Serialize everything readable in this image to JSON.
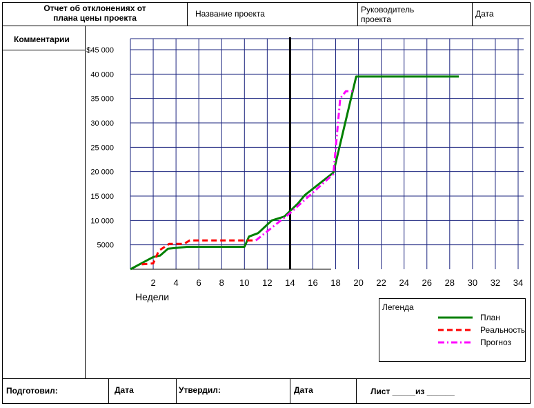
{
  "header": {
    "report_title_line1": "Отчет об отклонениях от",
    "report_title_line2": "плана цены проекта",
    "project_name": "Название проекта",
    "manager_line1": "Руководитель",
    "manager_line2": "проекта",
    "date": "Дата"
  },
  "sidebar": {
    "comments": "Комментарии"
  },
  "footer": {
    "prepared_by": "Подготовил:",
    "date1": "Дата",
    "approved_by": "Утвердил:",
    "date2": "Дата",
    "sheet": "Лист _____из ______"
  },
  "chart_data": {
    "type": "line",
    "xlabel": "Недели",
    "ylabel": "",
    "xlim": [
      0,
      34
    ],
    "ylim": [
      0,
      45000
    ],
    "x_ticks": [
      2,
      4,
      6,
      8,
      10,
      12,
      14,
      16,
      18,
      20,
      22,
      24,
      26,
      28,
      30,
      32,
      34
    ],
    "x_tick_labels": [
      "2",
      "4",
      "6",
      "8",
      "10",
      "12",
      "14",
      "16",
      "18",
      "20",
      "22",
      "24",
      "26",
      "28",
      "30",
      "32",
      "34"
    ],
    "y_ticks": [
      5000,
      10000,
      15000,
      20000,
      25000,
      30000,
      35000,
      40000,
      45000
    ],
    "y_tick_labels": [
      "5000",
      "10 000",
      "15 000",
      "20 000",
      "25 000",
      "30 000",
      "35 000",
      "40 000",
      "$45 000"
    ],
    "grid": true,
    "current_week_marker": 14,
    "legend": {
      "title": "Легенда",
      "position": "bottom-right",
      "entries": [
        "План",
        "Реальность",
        "Прогноз"
      ]
    },
    "series": [
      {
        "name": "План",
        "color": "#008000",
        "style": "solid",
        "points": [
          [
            0,
            0
          ],
          [
            2,
            2500
          ],
          [
            2.6,
            2800
          ],
          [
            3.3,
            4200
          ],
          [
            5,
            4600
          ],
          [
            10,
            4600
          ],
          [
            10.4,
            6700
          ],
          [
            11.2,
            7400
          ],
          [
            12.4,
            10000
          ],
          [
            13.5,
            10800
          ],
          [
            14.7,
            13500
          ],
          [
            15.3,
            15200
          ],
          [
            17.8,
            19800
          ],
          [
            19.8,
            39500
          ],
          [
            28.8,
            39500
          ]
        ]
      },
      {
        "name": "Реальность",
        "color": "#ff0000",
        "style": "dashed",
        "points": [
          [
            1,
            1000
          ],
          [
            2,
            1200
          ],
          [
            2.5,
            3800
          ],
          [
            3.4,
            5200
          ],
          [
            4.7,
            5200
          ],
          [
            5.2,
            5900
          ],
          [
            11,
            5900
          ]
        ]
      },
      {
        "name": "Прогноз",
        "color": "#ff00ff",
        "style": "dashdot",
        "points": [
          [
            11,
            5900
          ],
          [
            14,
            11500
          ],
          [
            17.8,
            19500
          ],
          [
            18.4,
            35000
          ],
          [
            18.9,
            36500
          ],
          [
            19.5,
            36500
          ]
        ]
      }
    ]
  }
}
